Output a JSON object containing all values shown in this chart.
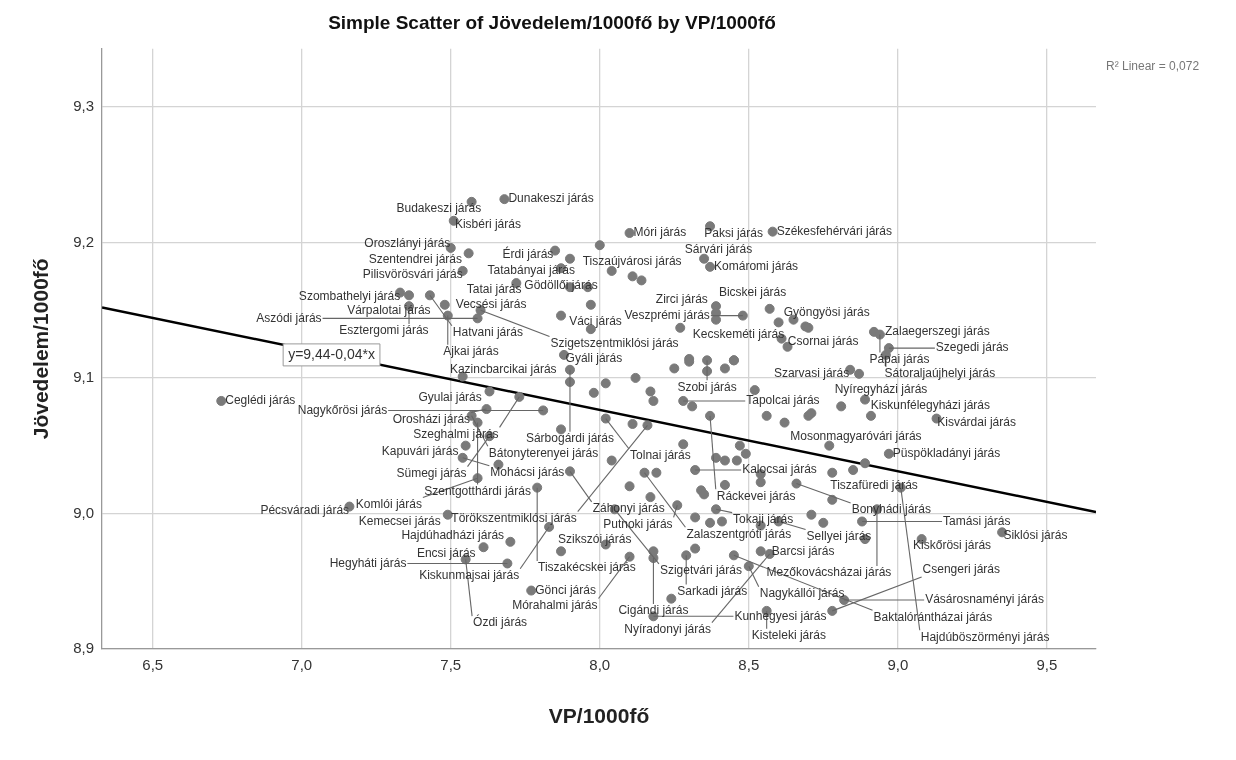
{
  "chart_data": {
    "type": "scatter",
    "title": "Simple Scatter of Jövedelem/1000fő by VP/1000fő",
    "xlabel": "VP/1000fő",
    "ylabel": "Jövedelem/1000fő",
    "xlim": [
      6.33,
      9.665
    ],
    "ylim": [
      8.9,
      9.343
    ],
    "xticks": [
      {
        "value": 6.5,
        "label": "6,5"
      },
      {
        "value": 7.0,
        "label": "7,0"
      },
      {
        "value": 7.5,
        "label": "7,5"
      },
      {
        "value": 8.0,
        "label": "8,0"
      },
      {
        "value": 8.5,
        "label": "8,5"
      },
      {
        "value": 9.0,
        "label": "9,0"
      },
      {
        "value": 9.5,
        "label": "9,5"
      }
    ],
    "yticks": [
      {
        "value": 8.9,
        "label": "8,9"
      },
      {
        "value": 9.0,
        "label": "9,0"
      },
      {
        "value": 9.1,
        "label": "9,1"
      },
      {
        "value": 9.2,
        "label": "9,2"
      },
      {
        "value": 9.3,
        "label": "9,3"
      }
    ],
    "grid": true,
    "legend": false,
    "marker": "circle",
    "series": [
      {
        "type": "scatter",
        "color": "#7a7a7a",
        "x": [
          7.57,
          7.68,
          8.04,
          8.37,
          8.1,
          7.51,
          7.9,
          8.58,
          7.56,
          7.5,
          7.85,
          8.37,
          8.35,
          7.87,
          7.72,
          7.54,
          8.65,
          8.57,
          8.6,
          8.48,
          7.33,
          7.36,
          7.43,
          7.36,
          8.39,
          8.69,
          8.92,
          7.48,
          7.49,
          7.87,
          8.94,
          7.6,
          7.59,
          8.96,
          7.88,
          8.97,
          7.54,
          8.36,
          7.9,
          7.63,
          8.84,
          8.87,
          6.73,
          7.73,
          7.62,
          8.28,
          8.89,
          7.57,
          7.81,
          8.02,
          8.37,
          9.13,
          7.59,
          7.63,
          7.55,
          8.77,
          8.16,
          8.97,
          7.54,
          7.9,
          8.32,
          8.85,
          8.15,
          7.79,
          8.66,
          7.59,
          9.01,
          7.16,
          8.26,
          8.39,
          8.05,
          7.83,
          7.87,
          8.93,
          7.49,
          7.7,
          8.6,
          9.08,
          8.54,
          7.69,
          7.61,
          7.55,
          8.88,
          9.35,
          8.29,
          8.5,
          8.57,
          7.77,
          8.18,
          8.1,
          8.18,
          8.56,
          8.82,
          8.45,
          8.78,
          8.0,
          8.11,
          8.14,
          7.9,
          7.96,
          7.97,
          8.39,
          8.39,
          8.61,
          8.63,
          8.3,
          8.45,
          7.97,
          8.27,
          7.9,
          8.02,
          8.12,
          8.25,
          8.3,
          8.42,
          8.45,
          7.98,
          8.17,
          8.18,
          8.31,
          8.11,
          7.87,
          8.52,
          8.56,
          8.62,
          8.7,
          8.28,
          8.47,
          8.49,
          8.46,
          7.66,
          8.04,
          8.19,
          8.39,
          8.42,
          8.1,
          8.17,
          8.34,
          8.35,
          8.42,
          8.54,
          8.54,
          8.32,
          8.37,
          8.41,
          8.54,
          8.02,
          8.18,
          8.32,
          8.24,
          8.81,
          8.71,
          8.91,
          8.78,
          8.89,
          8.78,
          8.71,
          8.75,
          8.89,
          8.7,
          8.36
        ],
        "values": [
          9.23,
          9.232,
          9.179,
          9.212,
          9.207,
          9.216,
          9.188,
          9.208,
          9.192,
          9.196,
          9.194,
          9.182,
          9.188,
          9.181,
          9.17,
          9.179,
          9.143,
          9.151,
          9.141,
          9.146,
          9.163,
          9.161,
          9.161,
          9.153,
          9.153,
          9.138,
          9.134,
          9.154,
          9.146,
          9.146,
          9.132,
          9.15,
          9.144,
          9.117,
          9.117,
          9.122,
          9.101,
          9.113,
          9.106,
          9.09,
          9.106,
          9.103,
          9.083,
          9.086,
          9.077,
          9.083,
          9.084,
          9.072,
          9.076,
          9.07,
          9.072,
          9.07,
          9.067,
          9.057,
          9.05,
          9.05,
          9.065,
          9.044,
          9.041,
          9.031,
          9.032,
          9.032,
          9.03,
          9.019,
          9.022,
          9.026,
          9.019,
          9.005,
          9.006,
          9.003,
          9.003,
          8.99,
          8.972,
          9.003,
          8.999,
          8.979,
          8.994,
          8.981,
          8.972,
          8.963,
          8.975,
          8.966,
          8.994,
          8.986,
          8.969,
          8.961,
          8.97,
          8.943,
          8.967,
          8.968,
          8.924,
          8.928,
          8.936,
          8.969,
          8.928,
          9.198,
          9.175,
          9.172,
          9.167,
          9.167,
          9.154,
          9.148,
          9.143,
          9.129,
          9.123,
          9.114,
          9.113,
          9.136,
          9.137,
          9.097,
          9.096,
          9.1,
          9.107,
          9.112,
          9.107,
          9.113,
          9.089,
          9.09,
          9.083,
          9.079,
          9.066,
          9.062,
          9.091,
          9.072,
          9.067,
          9.072,
          9.051,
          9.05,
          9.044,
          9.039,
          9.036,
          9.039,
          9.03,
          9.041,
          9.039,
          9.02,
          9.012,
          9.017,
          9.014,
          9.021,
          9.029,
          9.023,
          8.997,
          8.993,
          8.994,
          8.991,
          8.977,
          8.972,
          8.974,
          8.937,
          9.079,
          9.074,
          9.072,
          9.03,
          9.037,
          9.01,
          8.999,
          8.993,
          8.981,
          9.137,
          9.105
        ]
      },
      {
        "type": "line",
        "color": "#000000",
        "marker": "none",
        "x": [
          6.33,
          9.665
        ],
        "values": [
          9.152,
          9.001
        ]
      }
    ],
    "annotations": [
      {
        "text": "Budakeszi járás",
        "x": 7.57,
        "y": 9.23
      },
      {
        "text": "Dunakeszi járás",
        "x": 7.68,
        "y": 9.232
      },
      {
        "text": "Tiszaújvárosi járás",
        "x": 8.04,
        "y": 9.179
      },
      {
        "text": "Paksi járás",
        "x": 8.37,
        "y": 9.212
      },
      {
        "text": "Móri járás",
        "x": 8.1,
        "y": 9.207
      },
      {
        "text": "Kisbéri járás",
        "x": 7.51,
        "y": 9.216
      },
      {
        "text": "Tatabányai járás",
        "x": 7.9,
        "y": 9.188
      },
      {
        "text": "Székesfehérvári járás",
        "x": 8.58,
        "y": 9.208
      },
      {
        "text": "Szentendrei járás",
        "x": 7.56,
        "y": 9.192
      },
      {
        "text": "Oroszlányi járás",
        "x": 7.5,
        "y": 9.196
      },
      {
        "text": "Érdi járás",
        "x": 7.85,
        "y": 9.194
      },
      {
        "text": "Komáromi járás",
        "x": 8.37,
        "y": 9.182
      },
      {
        "text": "Sárvári járás",
        "x": 8.35,
        "y": 9.188
      },
      {
        "text": "Gödöllői járás",
        "x": 7.87,
        "y": 9.181
      },
      {
        "text": "Tatai járás",
        "x": 7.72,
        "y": 9.17
      },
      {
        "text": "Pilisvörösvári járás",
        "x": 7.54,
        "y": 9.179
      },
      {
        "text": "Gyöngyösi járás",
        "x": 8.65,
        "y": 9.143
      },
      {
        "text": "Bicskei járás",
        "x": 8.57,
        "y": 9.151
      },
      {
        "text": "Kecskeméti járás",
        "x": 8.6,
        "y": 9.141
      },
      {
        "text": "Veszprémi járás",
        "x": 8.48,
        "y": 9.146
      },
      {
        "text": "Szombathelyi járás",
        "x": 7.33,
        "y": 9.163
      },
      {
        "text": "Várpalotai járás",
        "x": 7.36,
        "y": 9.161
      },
      {
        "text": "Hatvani járás",
        "x": 7.43,
        "y": 9.161
      },
      {
        "text": "Esztergomi járás",
        "x": 7.36,
        "y": 9.153
      },
      {
        "text": "Zirci járás",
        "x": 8.39,
        "y": 9.153
      },
      {
        "text": "Csornai járás",
        "x": 8.69,
        "y": 9.138
      },
      {
        "text": "Zalaegerszegi járás",
        "x": 8.92,
        "y": 9.134
      },
      {
        "text": "Vecsési járás",
        "x": 7.48,
        "y": 9.154
      },
      {
        "text": "Ajkai járás",
        "x": 7.49,
        "y": 9.146
      },
      {
        "text": "Váci járás",
        "x": 7.87,
        "y": 9.146
      },
      {
        "text": "Pápai járás",
        "x": 8.94,
        "y": 9.132
      },
      {
        "text": "Szigetszentmiklósi járás",
        "x": 7.6,
        "y": 9.15
      },
      {
        "text": "Aszódi járás",
        "x": 7.59,
        "y": 9.144
      },
      {
        "text": "Sátoraljaújhelyi járás",
        "x": 8.96,
        "y": 9.117
      },
      {
        "text": "Gyáli járás",
        "x": 7.88,
        "y": 9.117
      },
      {
        "text": "Szegedi járás",
        "x": 8.97,
        "y": 9.122
      },
      {
        "text": "Kazincbarcikai járás",
        "x": 7.54,
        "y": 9.101
      },
      {
        "text": "Szobi járás",
        "x": 8.36,
        "y": 9.113
      },
      {
        "text": "Sárbogárdi járás",
        "x": 7.9,
        "y": 9.106
      },
      {
        "text": "Gyulai járás",
        "x": 7.63,
        "y": 9.09
      },
      {
        "text": "Szarvasi járás",
        "x": 8.84,
        "y": 9.106
      },
      {
        "text": "Nyíregyházi járás",
        "x": 8.87,
        "y": 9.103
      },
      {
        "text": "Ceglédi járás",
        "x": 6.73,
        "y": 9.083
      },
      {
        "text": "Szeghalmi járás",
        "x": 7.73,
        "y": 9.086
      },
      {
        "text": "Orosházi járás",
        "x": 7.62,
        "y": 9.077
      },
      {
        "text": "Tapolcai járás",
        "x": 8.28,
        "y": 9.083
      },
      {
        "text": "Kiskunfélegyházi járás",
        "x": 8.89,
        "y": 9.084
      },
      {
        "text": "Bátonyterenyei járás",
        "x": 7.57,
        "y": 9.072
      },
      {
        "text": "Nagykőrösi járás",
        "x": 7.81,
        "y": 9.076
      },
      {
        "text": "Tolnai járás",
        "x": 8.02,
        "y": 9.07
      },
      {
        "text": "Ráckevei járás",
        "x": 8.37,
        "y": 9.072
      },
      {
        "text": "Kisvárdai járás",
        "x": 9.13,
        "y": 9.07
      },
      {
        "text": "Szentgotthárdi járás",
        "x": 7.59,
        "y": 9.067
      },
      {
        "text": "Sümegi járás",
        "x": 7.63,
        "y": 9.057
      },
      {
        "text": "Kapuvári járás",
        "x": 7.55,
        "y": 9.05
      },
      {
        "text": "Mosonmagyaróvári járás",
        "x": 8.77,
        "y": 9.05
      },
      {
        "text": "Törökszentmiklósi járás",
        "x": 8.16,
        "y": 9.065
      },
      {
        "text": "Püspökladányi járás",
        "x": 8.97,
        "y": 9.044
      },
      {
        "text": "Mohácsi járás",
        "x": 7.54,
        "y": 9.041
      },
      {
        "text": "Záhonyi járás",
        "x": 7.9,
        "y": 9.031
      },
      {
        "text": "Kalocsai járás",
        "x": 8.32,
        "y": 9.032
      },
      {
        "text": "Tiszafüredi járás",
        "x": 8.85,
        "y": 9.032
      },
      {
        "text": "Zalaszentgróti járás",
        "x": 8.15,
        "y": 9.03
      },
      {
        "text": "Tiszakécskei járás",
        "x": 7.79,
        "y": 9.019
      },
      {
        "text": "Bonyhádi járás",
        "x": 8.66,
        "y": 9.022
      },
      {
        "text": "Komlói járás",
        "x": 7.59,
        "y": 9.026
      },
      {
        "text": "Hajdúböszörményi járás",
        "x": 9.01,
        "y": 9.019
      },
      {
        "text": "Pécsváradi járás",
        "x": 7.16,
        "y": 9.005
      },
      {
        "text": "Putnoki járás",
        "x": 8.26,
        "y": 9.006
      },
      {
        "text": "Tokaji járás",
        "x": 8.39,
        "y": 9.003
      },
      {
        "text": "Szigetvári járás",
        "x": 8.05,
        "y": 9.003
      },
      {
        "text": "Kiskunmajsai járás",
        "x": 7.83,
        "y": 8.99
      },
      {
        "text": "Szikszói járás",
        "x": 7.87,
        "y": 8.972
      },
      {
        "text": "Mezőkovácsházai járás",
        "x": 8.93,
        "y": 9.003
      },
      {
        "text": "Kemecsei járás",
        "x": 7.49,
        "y": 8.999
      },
      {
        "text": "Hajdúhadházi járás",
        "x": 7.7,
        "y": 8.979
      },
      {
        "text": "Sellyei járás",
        "x": 8.6,
        "y": 8.994
      },
      {
        "text": "Kiskőrösi járás",
        "x": 9.08,
        "y": 8.981
      },
      {
        "text": "Barcsi járás",
        "x": 8.54,
        "y": 8.972
      },
      {
        "text": "Hegyháti járás",
        "x": 7.69,
        "y": 8.963
      },
      {
        "text": "Encsi járás",
        "x": 7.61,
        "y": 8.975
      },
      {
        "text": "Ózdi járás",
        "x": 7.55,
        "y": 8.966
      },
      {
        "text": "Tamási járás",
        "x": 8.88,
        "y": 8.994
      },
      {
        "text": "Siklósi járás",
        "x": 9.35,
        "y": 8.986
      },
      {
        "text": "Sarkadi járás",
        "x": 8.29,
        "y": 8.969
      },
      {
        "text": "Nagykállói járás",
        "x": 8.5,
        "y": 8.961
      },
      {
        "text": "Nyíradonyi járás",
        "x": 8.57,
        "y": 8.97
      },
      {
        "text": "Gönci járás",
        "x": 7.77,
        "y": 8.943
      },
      {
        "text": "Cigándi járás",
        "x": 8.18,
        "y": 8.967
      },
      {
        "text": "Mórahalmi járás",
        "x": 8.1,
        "y": 8.968
      },
      {
        "text": "Kunhegyesi járás",
        "x": 8.18,
        "y": 8.924
      },
      {
        "text": "Kisteleki járás",
        "x": 8.56,
        "y": 8.928
      },
      {
        "text": "Vásárosnaményi járás",
        "x": 8.82,
        "y": 8.936
      },
      {
        "text": "Baktalórántházai járás",
        "x": 8.45,
        "y": 8.969
      },
      {
        "text": "Csengeri járás",
        "x": 8.78,
        "y": 8.928
      },
      {
        "text": "y=9,44-0,04*x",
        "x": 7.1,
        "y": 9.117
      },
      "R² Linear = 0,072"
    ]
  }
}
